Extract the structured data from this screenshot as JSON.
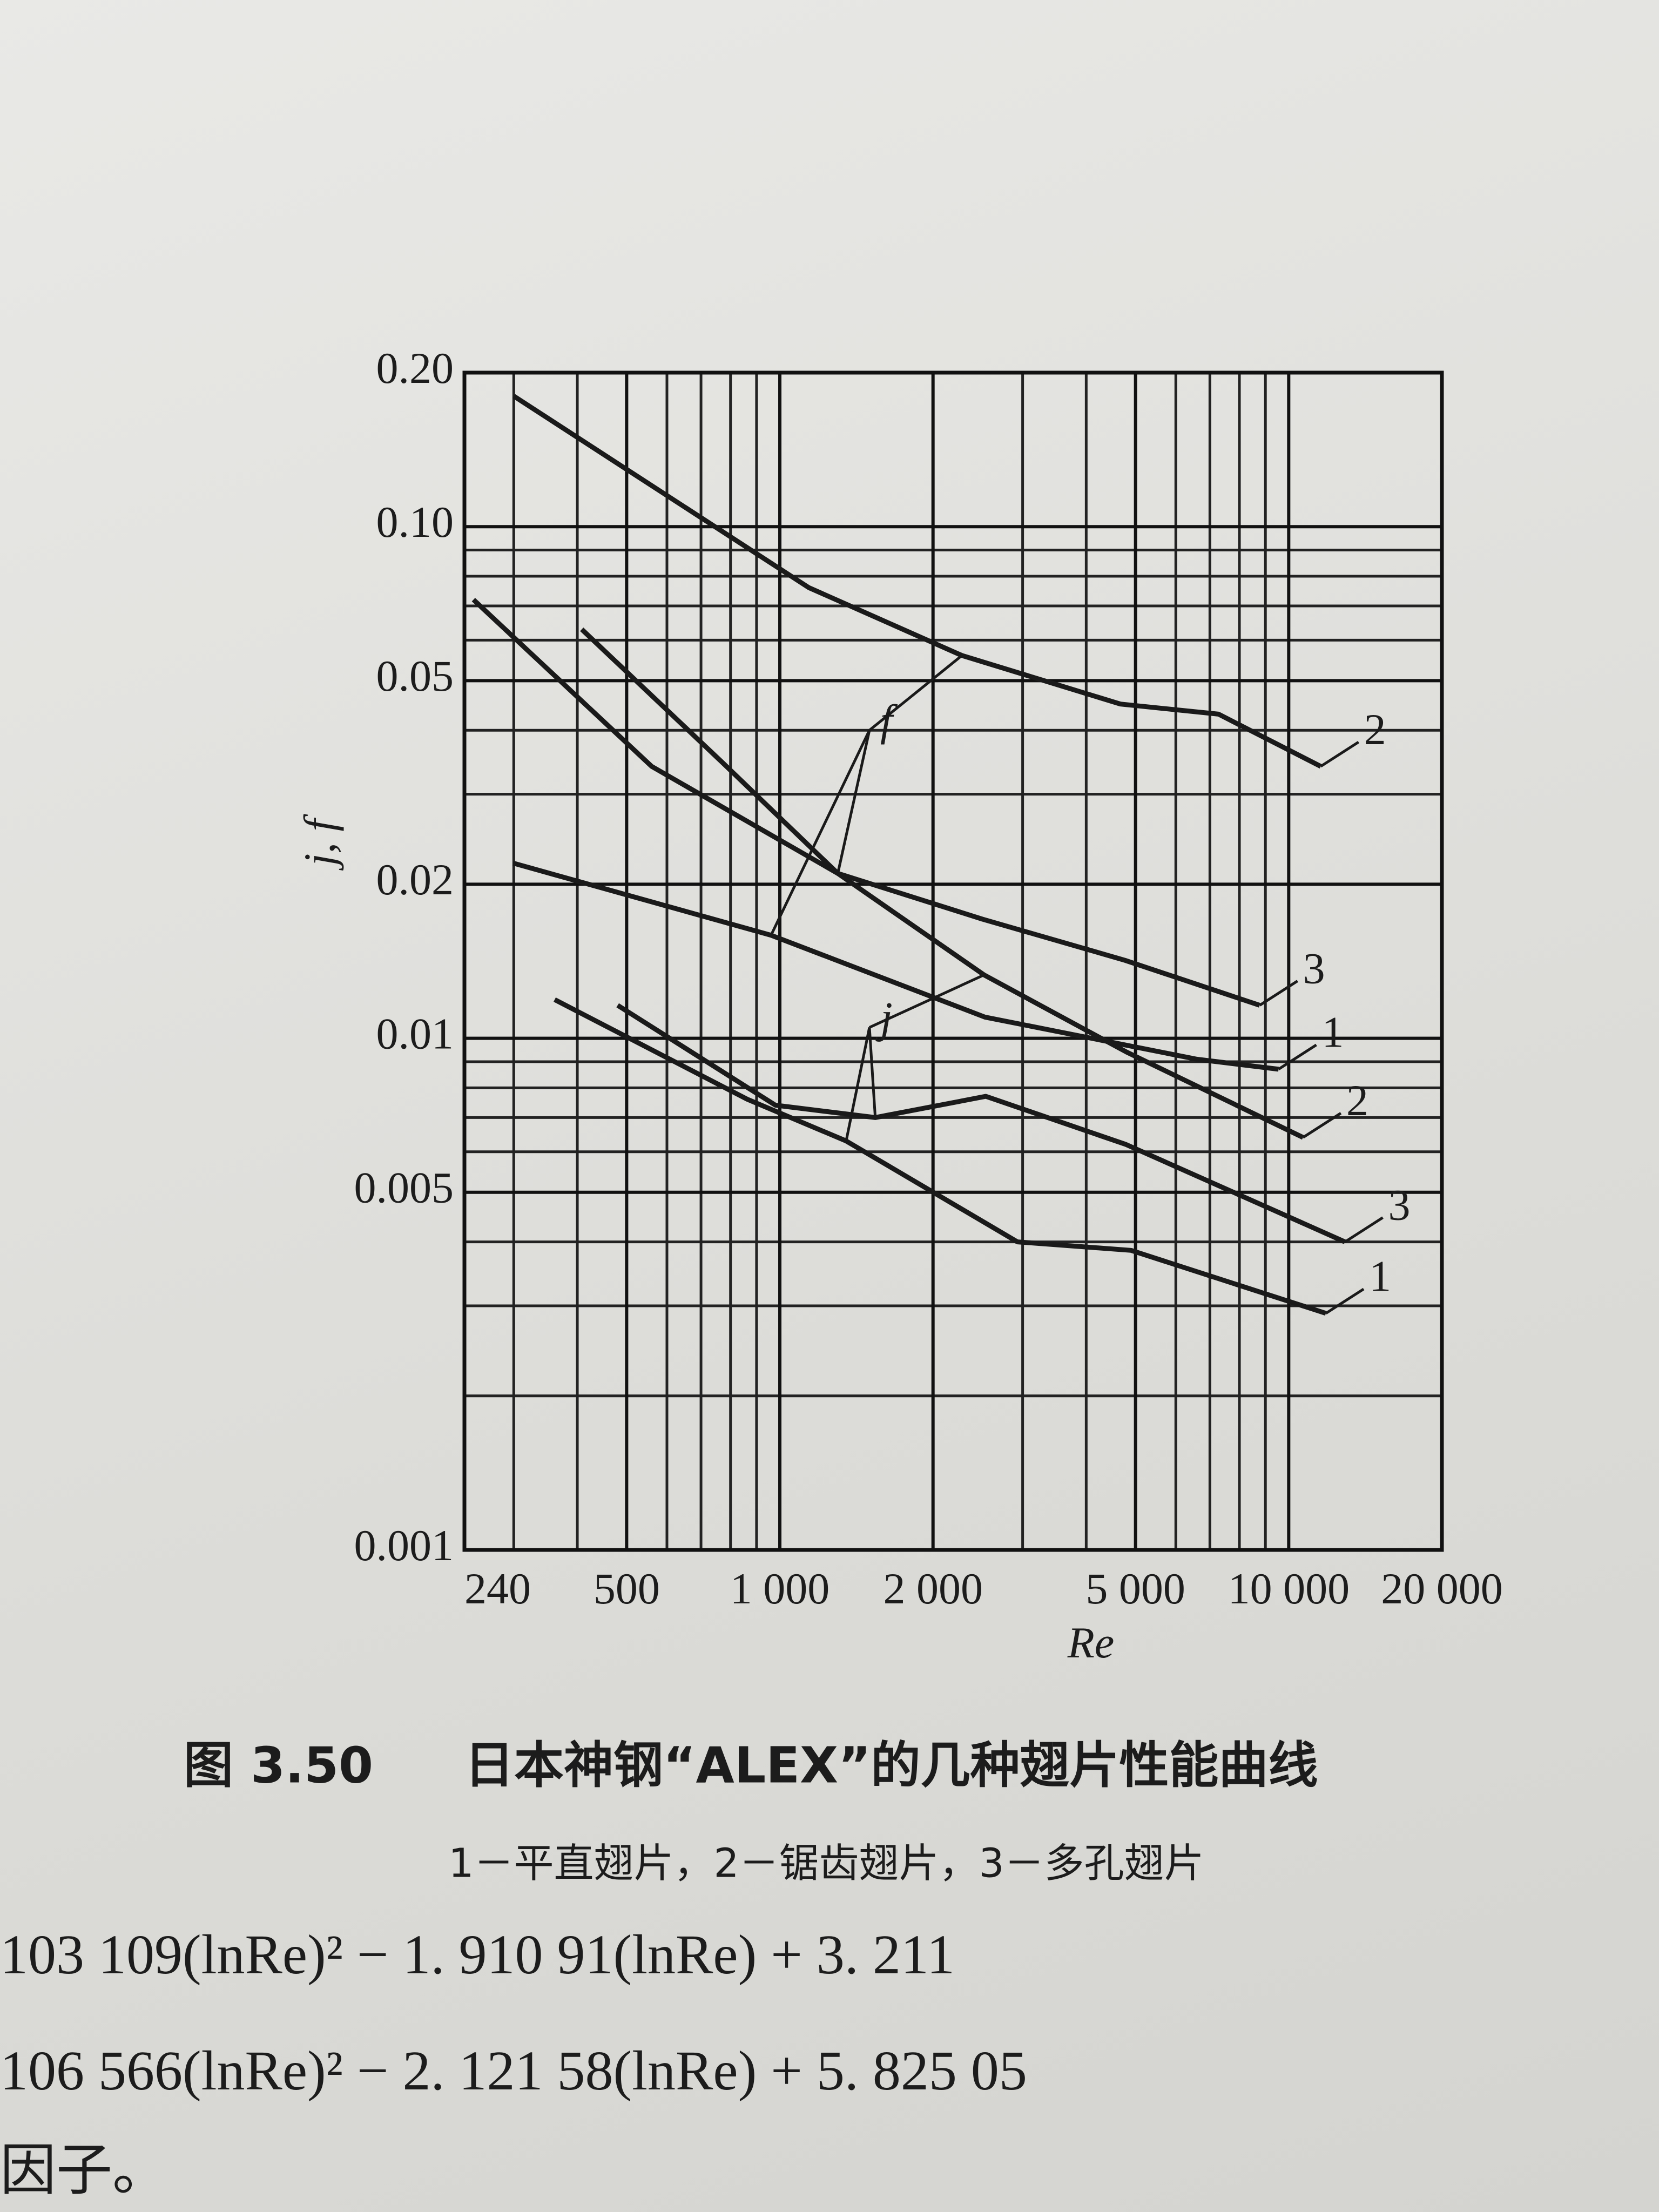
{
  "chart_data": {
    "type": "line",
    "figure_number": "图 3.50",
    "title": "日本神钢“ALEX”的几种翅片性能曲线",
    "subtitle": "1－平直翅片，2－锯齿翅片，3－多孔翅片",
    "x_label": "Re",
    "y_label": "j, f",
    "x_scale": "log",
    "y_scale": "log",
    "grid": true,
    "xlim": [
      240,
      20000
    ],
    "xticks": [
      240,
      500,
      {
        "value": 1000,
        "label": "1 000"
      },
      {
        "value": 2000,
        "label": "2 000"
      },
      {
        "value": 5000,
        "label": "5 000"
      },
      {
        "value": 10000,
        "label": "10 000"
      },
      {
        "value": 20000,
        "label": "20 000"
      }
    ],
    "ylim": [
      0.001,
      0.2
    ],
    "yticks": [
      0.001,
      0.005,
      0.01,
      0.02,
      0.05,
      {
        "value": 0.1,
        "label": "0.10"
      },
      {
        "value": 0.2,
        "label": "0.20"
      }
    ],
    "series": [
      {
        "name": "2",
        "group": "f",
        "color": "#1a1a1a",
        "x": [
          300,
          1140,
          2280,
          4670,
          7280,
          11560
        ],
        "values": [
          0.18,
          0.076,
          0.056,
          0.045,
          0.043,
          0.034
        ]
      },
      {
        "name": "3",
        "group": "f",
        "color": "#1a1a1a",
        "x": [
          250,
          560,
          1300,
          2500,
          4770,
          8770
        ],
        "values": [
          0.072,
          0.034,
          0.021,
          0.0171,
          0.0142,
          0.0116
        ]
      },
      {
        "name": "1",
        "group": "f",
        "color": "#1a1a1a",
        "x": [
          299,
          961,
          2530,
          6600,
          9550
        ],
        "values": [
          0.022,
          0.0159,
          0.011,
          0.0091,
          0.0087
        ]
      },
      {
        "name": "2",
        "group": "j",
        "color": "#1a1a1a",
        "x": [
          408,
          771,
          1300,
          2520,
          4800,
          10670
        ],
        "values": [
          0.063,
          0.0346,
          0.021,
          0.0133,
          0.0094,
          0.0064
        ]
      },
      {
        "name": "3",
        "group": "j",
        "color": "#1a1a1a",
        "x": [
          480,
          980,
          1540,
          2540,
          4790,
          12900
        ],
        "values": [
          0.0116,
          0.0074,
          0.007,
          0.0077,
          0.0062,
          0.004
        ]
      },
      {
        "name": "1",
        "group": "j",
        "color": "#1a1a1a",
        "x": [
          361,
          863,
          1350,
          2930,
          4900,
          11830
        ],
        "values": [
          0.0119,
          0.0076,
          0.0063,
          0.004,
          0.00385,
          0.0029
        ]
      }
    ]
  },
  "text_lines": [
    "103 109(lnRe)² − 1. 910 91(lnRe) + 3. 211",
    "106 566(lnRe)² − 2. 121 58(lnRe) + 5. 825 05",
    "因子。"
  ]
}
